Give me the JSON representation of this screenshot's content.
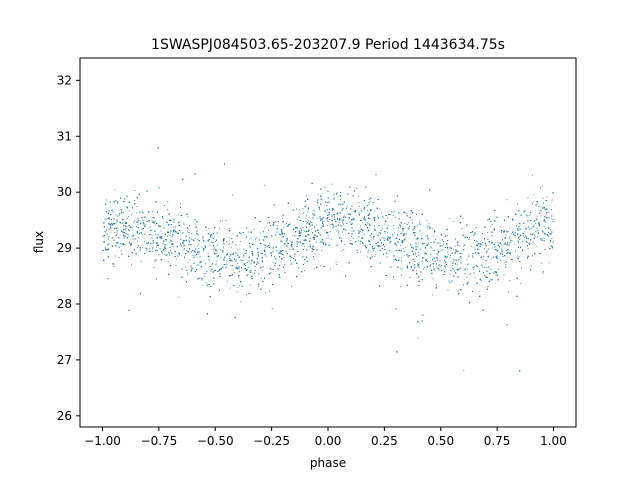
{
  "chart_data": {
    "type": "scatter",
    "title": "1SWASPJ084503.65-203207.9 Period 1443634.75s",
    "xlabel": "phase",
    "ylabel": "flux",
    "xlim": [
      -1.1,
      1.1
    ],
    "ylim": [
      25.8,
      32.4
    ],
    "xticks": [
      -1.0,
      -0.75,
      -0.5,
      -0.25,
      0.0,
      0.25,
      0.5,
      0.75,
      1.0
    ],
    "xtick_labels": [
      "−1.00",
      "−0.75",
      "−0.50",
      "−0.25",
      "0.00",
      "0.25",
      "0.50",
      "0.75",
      "1.00"
    ],
    "yticks": [
      26,
      27,
      28,
      29,
      30,
      31,
      32
    ],
    "ytick_labels": [
      "26",
      "27",
      "28",
      "29",
      "30",
      "31",
      "32"
    ],
    "grid": false,
    "legend": "none",
    "marker_color": "#1f77b4",
    "series": [
      {
        "name": "",
        "description_curve_phase": [
          -1.0,
          -0.9,
          -0.8,
          -0.7,
          -0.6,
          -0.5,
          -0.4,
          -0.3,
          -0.2,
          -0.1,
          0.0,
          0.1,
          0.2,
          0.3,
          0.4,
          0.5,
          0.6,
          0.7,
          0.8,
          0.9,
          1.0
        ],
        "median_flux": [
          29.3,
          29.4,
          29.3,
          29.2,
          29.0,
          28.9,
          28.8,
          28.9,
          29.1,
          29.3,
          29.4,
          29.5,
          29.3,
          29.2,
          29.0,
          28.9,
          28.8,
          28.9,
          29.1,
          29.3,
          29.4
        ]
      }
    ]
  }
}
